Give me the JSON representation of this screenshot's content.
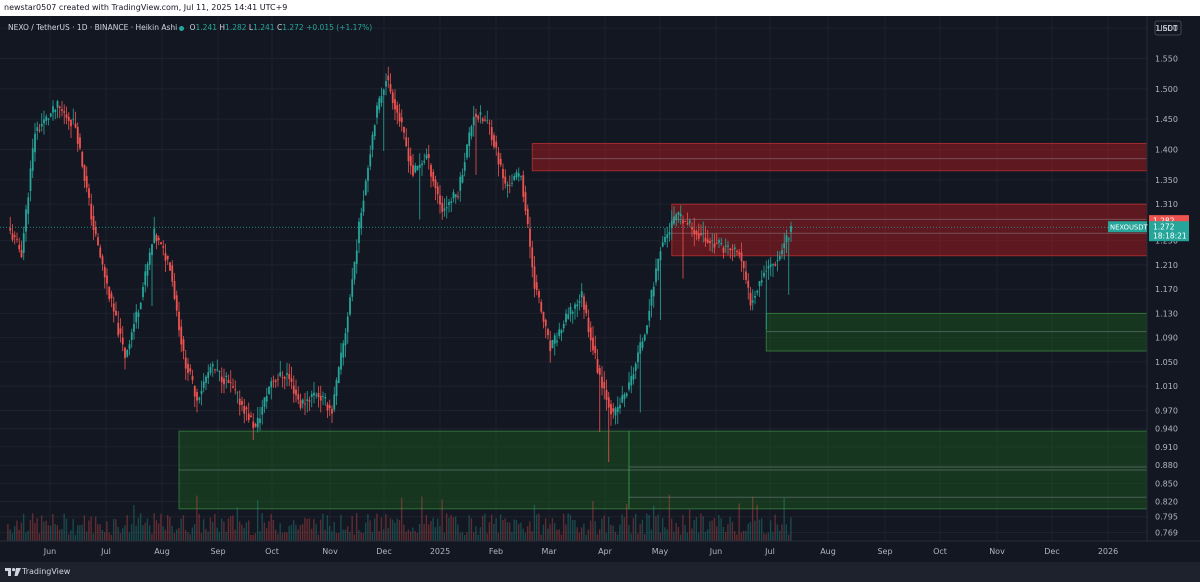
{
  "header": {
    "caption": "newstar0507 created with TradingView.com, Jul 11, 2025 14:41 UTC+9"
  },
  "legend": {
    "symbol": "NEXO / TetherUS · 1D · BINANCE · Heikin Ashi",
    "o_label": "O",
    "o": "1.241",
    "h_label": "H",
    "h": "1.282",
    "l_label": "L",
    "l": "1.241",
    "c_label": "C",
    "c": "1.272",
    "change": "+0.015 (+1.17%)"
  },
  "currency_label": "USDT",
  "price_tag": {
    "symbol": "NEXOUSDT",
    "price": "1.272",
    "countdown": "18:18:21"
  },
  "high_tag": "1.282",
  "footer": {
    "brand": "TradingView"
  },
  "colors": {
    "up": "#26a69a",
    "down": "#ef5350",
    "supply_zone": "#b71c1c",
    "demand_zone": "#1b5e20",
    "background": "#131722",
    "grid": "#1e222d"
  },
  "chart_data": {
    "type": "candlestick",
    "style": "Heikin Ashi",
    "title": "NEXO / TetherUS · 1D · BINANCE · Heikin Ashi",
    "x_ticks": [
      "Jun",
      "Jul",
      "Aug",
      "Sep",
      "Oct",
      "Nov",
      "Dec",
      "2025",
      "Feb",
      "Mar",
      "Apr",
      "May",
      "Jun",
      "Jul",
      "Aug",
      "Sep",
      "Oct",
      "Nov",
      "Dec",
      "2026"
    ],
    "y_ticks": [
      "1.600",
      "1.550",
      "1.500",
      "1.450",
      "1.400",
      "1.350",
      "1.310",
      "1.250",
      "1.210",
      "1.170",
      "1.130",
      "1.090",
      "1.050",
      "1.010",
      "0.970",
      "0.940",
      "0.910",
      "0.880",
      "0.850",
      "0.820",
      "0.795",
      "0.769"
    ],
    "ylim": [
      0.755,
      1.62
    ],
    "grid": true,
    "last_price": 1.272,
    "path_points": [
      {
        "t": 0,
        "p": 1.27
      },
      {
        "t": 6,
        "p": 1.23
      },
      {
        "t": 12,
        "p": 1.43
      },
      {
        "t": 22,
        "p": 1.47
      },
      {
        "t": 30,
        "p": 1.44
      },
      {
        "t": 38,
        "p": 1.27
      },
      {
        "t": 45,
        "p": 1.16
      },
      {
        "t": 52,
        "p": 1.06
      },
      {
        "t": 58,
        "p": 1.14
      },
      {
        "t": 65,
        "p": 1.26
      },
      {
        "t": 72,
        "p": 1.21
      },
      {
        "t": 78,
        "p": 1.06
      },
      {
        "t": 84,
        "p": 0.99
      },
      {
        "t": 90,
        "p": 1.04
      },
      {
        "t": 97,
        "p": 1.02
      },
      {
        "t": 104,
        "p": 0.98
      },
      {
        "t": 110,
        "p": 0.94
      },
      {
        "t": 117,
        "p": 1.02
      },
      {
        "t": 124,
        "p": 1.03
      },
      {
        "t": 130,
        "p": 0.98
      },
      {
        "t": 137,
        "p": 1.0
      },
      {
        "t": 144,
        "p": 0.97
      },
      {
        "t": 150,
        "p": 1.1
      },
      {
        "t": 157,
        "p": 1.3
      },
      {
        "t": 163,
        "p": 1.45
      },
      {
        "t": 168,
        "p": 1.52
      },
      {
        "t": 174,
        "p": 1.45
      },
      {
        "t": 180,
        "p": 1.36
      },
      {
        "t": 186,
        "p": 1.39
      },
      {
        "t": 193,
        "p": 1.3
      },
      {
        "t": 200,
        "p": 1.33
      },
      {
        "t": 207,
        "p": 1.46
      },
      {
        "t": 214,
        "p": 1.44
      },
      {
        "t": 221,
        "p": 1.34
      },
      {
        "t": 228,
        "p": 1.36
      },
      {
        "t": 234,
        "p": 1.18
      },
      {
        "t": 241,
        "p": 1.07
      },
      {
        "t": 248,
        "p": 1.12
      },
      {
        "t": 255,
        "p": 1.16
      },
      {
        "t": 262,
        "p": 1.04
      },
      {
        "t": 269,
        "p": 0.96
      },
      {
        "t": 276,
        "p": 1.01
      },
      {
        "t": 283,
        "p": 1.1
      },
      {
        "t": 290,
        "p": 1.24
      },
      {
        "t": 297,
        "p": 1.29
      },
      {
        "t": 304,
        "p": 1.27
      },
      {
        "t": 311,
        "p": 1.25
      },
      {
        "t": 318,
        "p": 1.24
      },
      {
        "t": 325,
        "p": 1.23
      },
      {
        "t": 330,
        "p": 1.15
      },
      {
        "t": 336,
        "p": 1.2
      },
      {
        "t": 342,
        "p": 1.22
      },
      {
        "t": 348,
        "p": 1.272
      }
    ],
    "zones": [
      {
        "kind": "supply",
        "from_t": 233,
        "to_t": "right",
        "low": 1.365,
        "high": 1.41
      },
      {
        "kind": "supply",
        "from_t": 295,
        "to_t": "right",
        "low": 1.225,
        "high": 1.31
      },
      {
        "kind": "demand",
        "from_t": 337,
        "to_t": "right",
        "low": 1.068,
        "high": 1.13
      },
      {
        "kind": "demand",
        "from_t": 76,
        "to_t": 276,
        "low": 0.808,
        "high": 0.936
      },
      {
        "kind": "demand",
        "from_t": 276,
        "to_t": "right",
        "low": 0.808,
        "high": 0.936
      }
    ]
  }
}
